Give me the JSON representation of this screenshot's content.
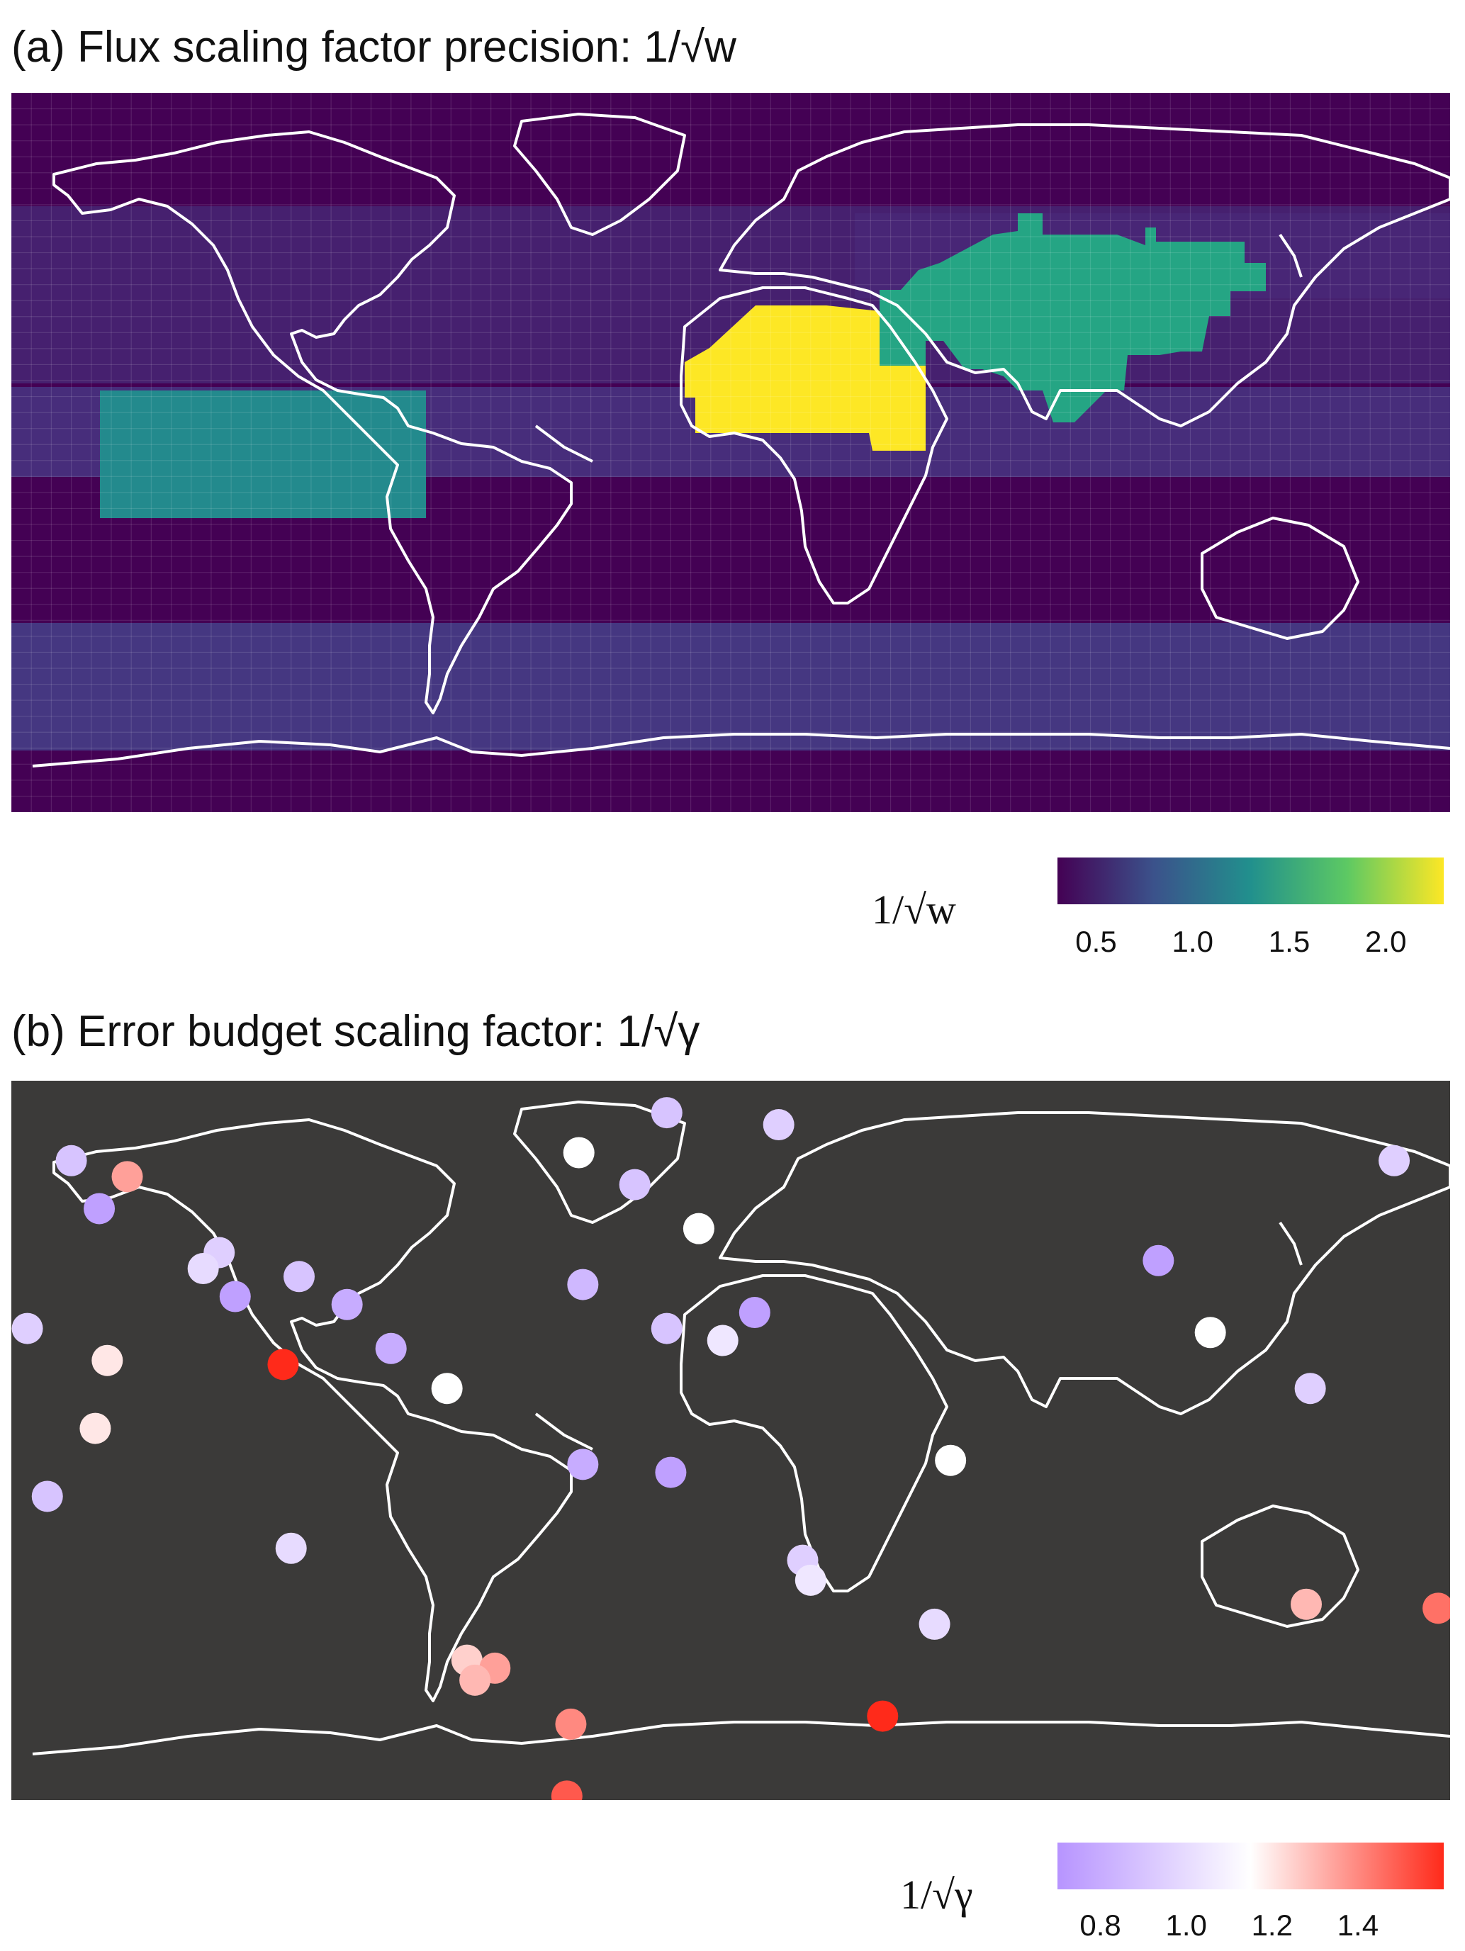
{
  "panel_a": {
    "title": "(a) Flux scaling factor precision: 1/√w",
    "legend_title": "1/√w",
    "legend_ticks": [
      "0.5",
      "1.0",
      "1.5",
      "2.0"
    ],
    "legend_range": [
      0.3,
      2.3
    ],
    "palette": [
      "#440154",
      "#3b528b",
      "#21908d",
      "#5dc963",
      "#fde725"
    ],
    "colors": {
      "background_low": "#440154",
      "band_mid": "#453781",
      "europe_asia": "#472d7b",
      "sahara": "#fde725",
      "middle_east_asia": "#25a584",
      "tropical_pacific": "#238a8d",
      "coastline": "#ffffff"
    },
    "regions": [
      {
        "name": "tropical-pacific-block",
        "value": 1.3
      },
      {
        "name": "sahara-block",
        "value": 2.25
      },
      {
        "name": "middle-east-asia-block",
        "value": 1.6
      },
      {
        "name": "southern-ocean-band",
        "value": 0.6
      },
      {
        "name": "tropical-band",
        "value": 0.6
      }
    ]
  },
  "panel_b": {
    "title": "(b) Error budget scaling factor: 1/√γ",
    "legend_title": "1/√γ",
    "legend_ticks": [
      "0.8",
      "1.0",
      "1.2",
      "1.4"
    ],
    "legend_range": [
      0.7,
      1.6
    ],
    "palette": [
      "#b794ff",
      "#ffffff",
      "#ff2a1a"
    ],
    "colors": {
      "map_background": "#3b3a39",
      "coastline": "#ffffff"
    },
    "stations": [
      {
        "lon": -16,
        "lat": 82,
        "value": 0.9
      },
      {
        "lon": -38,
        "lat": 72,
        "value": 1.15
      },
      {
        "lon": -165,
        "lat": 70,
        "value": 0.9
      },
      {
        "lon": -151,
        "lat": 66,
        "value": 1.35
      },
      {
        "lon": -158,
        "lat": 58,
        "value": 0.75
      },
      {
        "lon": -24,
        "lat": 64,
        "value": 0.9
      },
      {
        "lon": 12,
        "lat": 79,
        "value": 0.95
      },
      {
        "lon": 166,
        "lat": 70,
        "value": 0.95
      },
      {
        "lon": -8,
        "lat": 53,
        "value": 1.15
      },
      {
        "lon": -128,
        "lat": 47,
        "value": 0.95
      },
      {
        "lon": -132,
        "lat": 43,
        "value": 1.0
      },
      {
        "lon": -108,
        "lat": 41,
        "value": 0.9
      },
      {
        "lon": -124,
        "lat": 36,
        "value": 0.75
      },
      {
        "lon": -96,
        "lat": 34,
        "value": 0.8
      },
      {
        "lon": -37,
        "lat": 39,
        "value": 0.85
      },
      {
        "lon": -16,
        "lat": 28,
        "value": 0.9
      },
      {
        "lon": 6,
        "lat": 32,
        "value": 0.75
      },
      {
        "lon": -2,
        "lat": 25,
        "value": 1.05
      },
      {
        "lon": -176,
        "lat": 28,
        "value": 0.95
      },
      {
        "lon": -156,
        "lat": 20,
        "value": 1.2
      },
      {
        "lon": -112,
        "lat": 19,
        "value": 1.6
      },
      {
        "lon": -85,
        "lat": 23,
        "value": 0.8
      },
      {
        "lon": -71,
        "lat": 13,
        "value": 1.15
      },
      {
        "lon": 107,
        "lat": 45,
        "value": 0.75
      },
      {
        "lon": 120,
        "lat": 27,
        "value": 1.15
      },
      {
        "lon": 145,
        "lat": 13,
        "value": 0.95
      },
      {
        "lon": -159,
        "lat": 3,
        "value": 1.2
      },
      {
        "lon": -37,
        "lat": -6,
        "value": 0.8
      },
      {
        "lon": -15,
        "lat": -8,
        "value": 0.75
      },
      {
        "lon": 55,
        "lat": -5,
        "value": 1.15
      },
      {
        "lon": -171,
        "lat": -14,
        "value": 0.9
      },
      {
        "lon": -110,
        "lat": -27,
        "value": 1.0
      },
      {
        "lon": 18,
        "lat": -30,
        "value": 0.95
      },
      {
        "lon": 20,
        "lat": -35,
        "value": 1.05
      },
      {
        "lon": 144,
        "lat": -41,
        "value": 1.3
      },
      {
        "lon": 177,
        "lat": -42,
        "value": 1.45
      },
      {
        "lon": 51,
        "lat": -46,
        "value": 1.0
      },
      {
        "lon": -66,
        "lat": -55,
        "value": 1.25
      },
      {
        "lon": -59,
        "lat": -57,
        "value": 1.35
      },
      {
        "lon": -64,
        "lat": -60,
        "value": 1.3
      },
      {
        "lon": -40,
        "lat": -71,
        "value": 1.4
      },
      {
        "lon": 38,
        "lat": -69,
        "value": 1.6
      },
      {
        "lon": -41,
        "lat": -89,
        "value": 1.5
      }
    ]
  }
}
